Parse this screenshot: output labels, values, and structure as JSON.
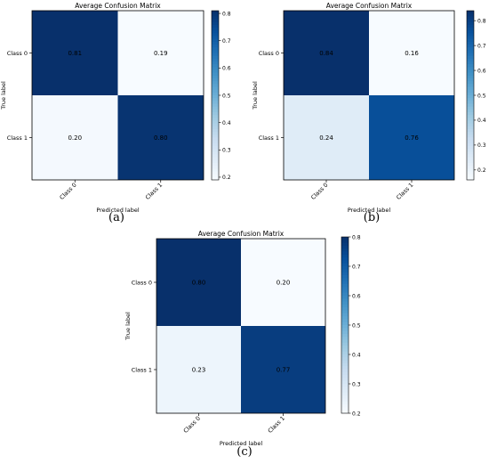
{
  "colors": {
    "cmap": [
      "#f7fbff",
      "#deebf7",
      "#c6dbef",
      "#9ecae1",
      "#6baed6",
      "#4292c6",
      "#2171b5",
      "#08519c",
      "#08306b"
    ],
    "annotation_text": "#000000",
    "frame": "#000000"
  },
  "chart_data": [
    {
      "type": "heatmap",
      "panel": "(a)",
      "title": "Average Confusion Matrix",
      "xlabel": "Predicted label",
      "ylabel": "True label",
      "x_categories": [
        "Class 0",
        "Class 1"
      ],
      "y_categories": [
        "Class 0",
        "Class 1"
      ],
      "values": [
        [
          0.81,
          0.19
        ],
        [
          0.2,
          0.8
        ]
      ],
      "cells_text": [
        [
          "0.81",
          "0.19"
        ],
        [
          "0.20",
          "0.80"
        ]
      ],
      "colorbar": {
        "min": 0.19,
        "max": 0.81,
        "ticks": [
          0.8,
          0.7,
          0.6,
          0.5,
          0.4,
          0.3,
          0.2
        ],
        "tick_labels": [
          "0.8",
          "0.7",
          "0.6",
          "0.5",
          "0.4",
          "0.3",
          "0.2"
        ]
      }
    },
    {
      "type": "heatmap",
      "panel": "(b)",
      "title": "Average Confusion Matrix",
      "xlabel": "Predicted label",
      "ylabel": "True label",
      "x_categories": [
        "Class 0",
        "Class 1"
      ],
      "y_categories": [
        "Class 0",
        "Class 1"
      ],
      "values": [
        [
          0.84,
          0.16
        ],
        [
          0.24,
          0.76
        ]
      ],
      "cells_text": [
        [
          "0.84",
          "0.16"
        ],
        [
          "0.24",
          "0.76"
        ]
      ],
      "colorbar": {
        "min": 0.16,
        "max": 0.84,
        "ticks": [
          0.8,
          0.7,
          0.6,
          0.5,
          0.4,
          0.3,
          0.2
        ],
        "tick_labels": [
          "0.8",
          "0.7",
          "0.6",
          "0.5",
          "0.4",
          "0.3",
          "0.2"
        ]
      }
    },
    {
      "type": "heatmap",
      "panel": "(c)",
      "title": "Average Confusion Matrix",
      "xlabel": "Predicted label",
      "ylabel": "True label",
      "x_categories": [
        "Class 0",
        "Class 1"
      ],
      "y_categories": [
        "Class 0",
        "Class 1"
      ],
      "values": [
        [
          0.8,
          0.2
        ],
        [
          0.23,
          0.77
        ]
      ],
      "cells_text": [
        [
          "0.80",
          "0.20"
        ],
        [
          "0.23",
          "0.77"
        ]
      ],
      "colorbar": {
        "min": 0.2,
        "max": 0.8,
        "ticks": [
          0.8,
          0.7,
          0.6,
          0.5,
          0.4,
          0.3,
          0.2
        ],
        "tick_labels": [
          "0.8",
          "0.7",
          "0.6",
          "0.5",
          "0.4",
          "0.3",
          "0.2"
        ]
      }
    }
  ]
}
